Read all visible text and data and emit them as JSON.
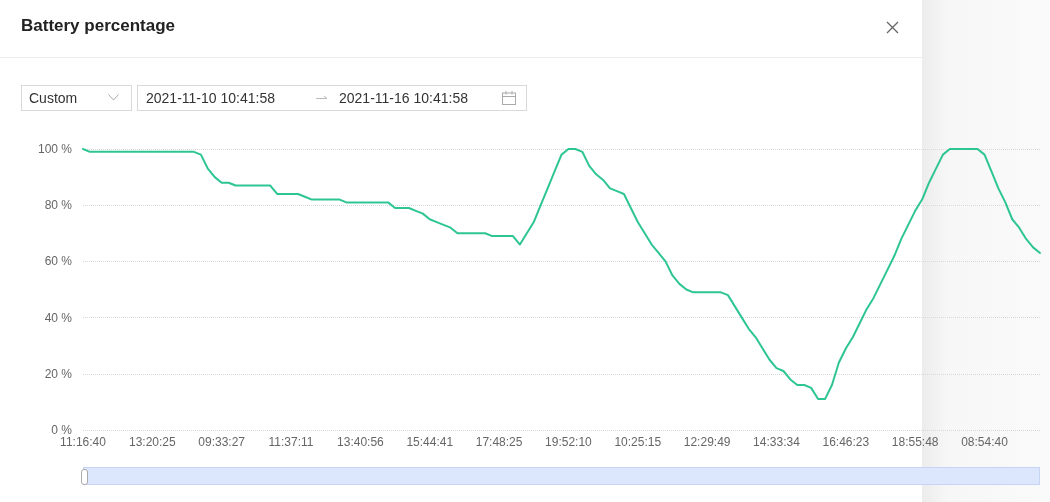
{
  "chart_data": {
    "type": "line",
    "title": "Battery percentage",
    "annotations": [
      "Custom",
      "2021-11-10 10:41:58",
      "2021-11-16 10:41:58"
    ],
    "categories": [
      "11:16:40",
      null,
      null,
      null,
      null,
      null,
      null,
      null,
      null,
      null,
      "13:20:25",
      null,
      null,
      null,
      null,
      null,
      null,
      null,
      null,
      null,
      "09:33:27",
      null,
      null,
      null,
      null,
      null,
      null,
      null,
      null,
      null,
      "11:37:11",
      null,
      null,
      null,
      null,
      null,
      null,
      null,
      null,
      null,
      "13:40:56",
      null,
      null,
      null,
      null,
      null,
      null,
      null,
      null,
      null,
      "15:44:41",
      null,
      null,
      null,
      null,
      null,
      null,
      null,
      null,
      null,
      "17:48:25",
      null,
      null,
      null,
      null,
      null,
      null,
      null,
      null,
      null,
      "19:52:10",
      null,
      null,
      null,
      null,
      null,
      null,
      null,
      null,
      null,
      "10:25:15",
      null,
      null,
      null,
      null,
      null,
      null,
      null,
      null,
      null,
      "12:29:49",
      null,
      null,
      null,
      null,
      null,
      null,
      null,
      null,
      null,
      "14:33:34",
      null,
      null,
      null,
      null,
      null,
      null,
      null,
      null,
      null,
      "16:46:23",
      null,
      null,
      null,
      null,
      null,
      null,
      null,
      null,
      null,
      "18:55:48",
      null,
      null,
      null,
      null,
      null,
      null,
      null,
      null,
      null,
      "08:54:40",
      null,
      null,
      null,
      null,
      null,
      null,
      null,
      null
    ],
    "series": [
      {
        "color": "#2ec595",
        "values": [
          100,
          99,
          99,
          99,
          99,
          99,
          99,
          99,
          99,
          99,
          99,
          99,
          99,
          99,
          99,
          99,
          99,
          98,
          93,
          90,
          88,
          88,
          87,
          87,
          87,
          87,
          87,
          87,
          84,
          84,
          84,
          84,
          83,
          82,
          82,
          82,
          82,
          82,
          81,
          81,
          81,
          81,
          81,
          81,
          81,
          79,
          79,
          79,
          78,
          77,
          75,
          74,
          73,
          72,
          70,
          70,
          70,
          70,
          70,
          69,
          69,
          69,
          69,
          66,
          70,
          74,
          80,
          86,
          92,
          98,
          100,
          100,
          99,
          94,
          91,
          89,
          86,
          85,
          84,
          79,
          74,
          70,
          66,
          63,
          60,
          55,
          52,
          50,
          49,
          49,
          49,
          49,
          49,
          48,
          44,
          40,
          36,
          33,
          29,
          25,
          22,
          21,
          18,
          16,
          16,
          15,
          11,
          11,
          16,
          24,
          29,
          33,
          38,
          43,
          47,
          52,
          57,
          62,
          68,
          73,
          78,
          82,
          88,
          93,
          98,
          100,
          100,
          100,
          100,
          100,
          98,
          92,
          86,
          81,
          75,
          72,
          68,
          65,
          63
        ]
      }
    ],
    "ylim": [
      0,
      100
    ],
    "yticks": [
      {
        "value": 0,
        "label": "0 %"
      },
      {
        "value": 20,
        "label": "20 %"
      },
      {
        "value": 40,
        "label": "40 %"
      },
      {
        "value": 60,
        "label": "60 %"
      },
      {
        "value": 80,
        "label": "80 %"
      },
      {
        "value": 100,
        "label": "100 %"
      }
    ],
    "grid": "y",
    "marker": "none",
    "line_style": "solid"
  }
}
